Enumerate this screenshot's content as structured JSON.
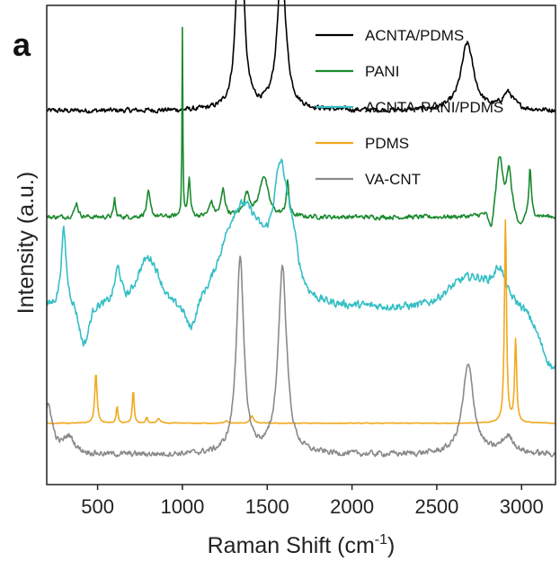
{
  "chart_data": {
    "type": "line",
    "panel_label": "a",
    "xlabel": "Raman Shift (cm",
    "xlabel_sup": "-1",
    "xlabel_close": ")",
    "ylabel": "Intensity (a.u.)",
    "xlim": [
      200,
      3200
    ],
    "ylim": [
      0,
      10
    ],
    "xticks": [
      500,
      1000,
      1500,
      2000,
      2500,
      3000
    ],
    "grid": false,
    "legend_position": "top-right",
    "series": [
      {
        "name": "ACNTA/PDMS",
        "color": "#000000",
        "baseline": 7.8,
        "noise": 0.08,
        "peaks": [
          [
            1340,
            5.05,
            22
          ],
          [
            1585,
            3.05,
            30
          ],
          [
            2680,
            1.4,
            45
          ],
          [
            2920,
            0.35,
            40
          ]
        ]
      },
      {
        "name": "PANI",
        "color": "#1a8a2e",
        "baseline": 5.58,
        "noise": 0.07,
        "peaks": [
          [
            375,
            0.3,
            12
          ],
          [
            600,
            0.4,
            6
          ],
          [
            800,
            0.5,
            12
          ],
          [
            1000,
            3.9,
            3
          ],
          [
            1040,
            0.8,
            8
          ],
          [
            1170,
            0.3,
            14
          ],
          [
            1240,
            0.55,
            14
          ],
          [
            1380,
            0.45,
            22
          ],
          [
            1480,
            0.85,
            30
          ],
          [
            1620,
            0.7,
            10
          ],
          [
            2870,
            1.2,
            22
          ],
          [
            2925,
            0.9,
            18
          ],
          [
            3050,
            1.0,
            8
          ]
        ],
        "dips": [
          [
            2820,
            0.4,
            20
          ],
          [
            2990,
            0.3,
            25
          ]
        ]
      },
      {
        "name": "ACNTA-PANI/PDMS",
        "color": "#35bfc6",
        "baseline": 3.7,
        "noise": 0.13,
        "peaks": [
          [
            300,
            1.6,
            18
          ],
          [
            620,
            0.8,
            25
          ],
          [
            800,
            1.0,
            90
          ],
          [
            1350,
            2.0,
            160
          ],
          [
            1580,
            2.6,
            55
          ],
          [
            1650,
            0.8,
            40
          ],
          [
            2700,
            0.6,
            180
          ],
          [
            2870,
            0.6,
            40
          ]
        ],
        "dips": [
          [
            420,
            0.8,
            40
          ],
          [
            1050,
            0.5,
            40
          ],
          [
            3200,
            1.3,
            120
          ]
        ]
      },
      {
        "name": "PDMS",
        "color": "#f0a91e",
        "baseline": 1.28,
        "noise": 0.012,
        "peaks": [
          [
            490,
            1.05,
            8
          ],
          [
            615,
            0.35,
            6
          ],
          [
            710,
            0.7,
            6
          ],
          [
            790,
            0.12,
            6
          ],
          [
            860,
            0.1,
            10
          ],
          [
            1260,
            0.05,
            10
          ],
          [
            1410,
            0.15,
            12
          ],
          [
            2905,
            4.3,
            7
          ],
          [
            2965,
            1.75,
            7
          ]
        ]
      },
      {
        "name": "VA-CNT",
        "color": "#8a8a8a",
        "baseline": 0.62,
        "noise": 0.09,
        "peaks": [
          [
            210,
            1.0,
            30
          ],
          [
            330,
            0.35,
            40
          ],
          [
            1340,
            4.1,
            26
          ],
          [
            1590,
            3.9,
            30
          ],
          [
            2685,
            1.85,
            40
          ],
          [
            2920,
            0.35,
            45
          ]
        ]
      }
    ]
  }
}
